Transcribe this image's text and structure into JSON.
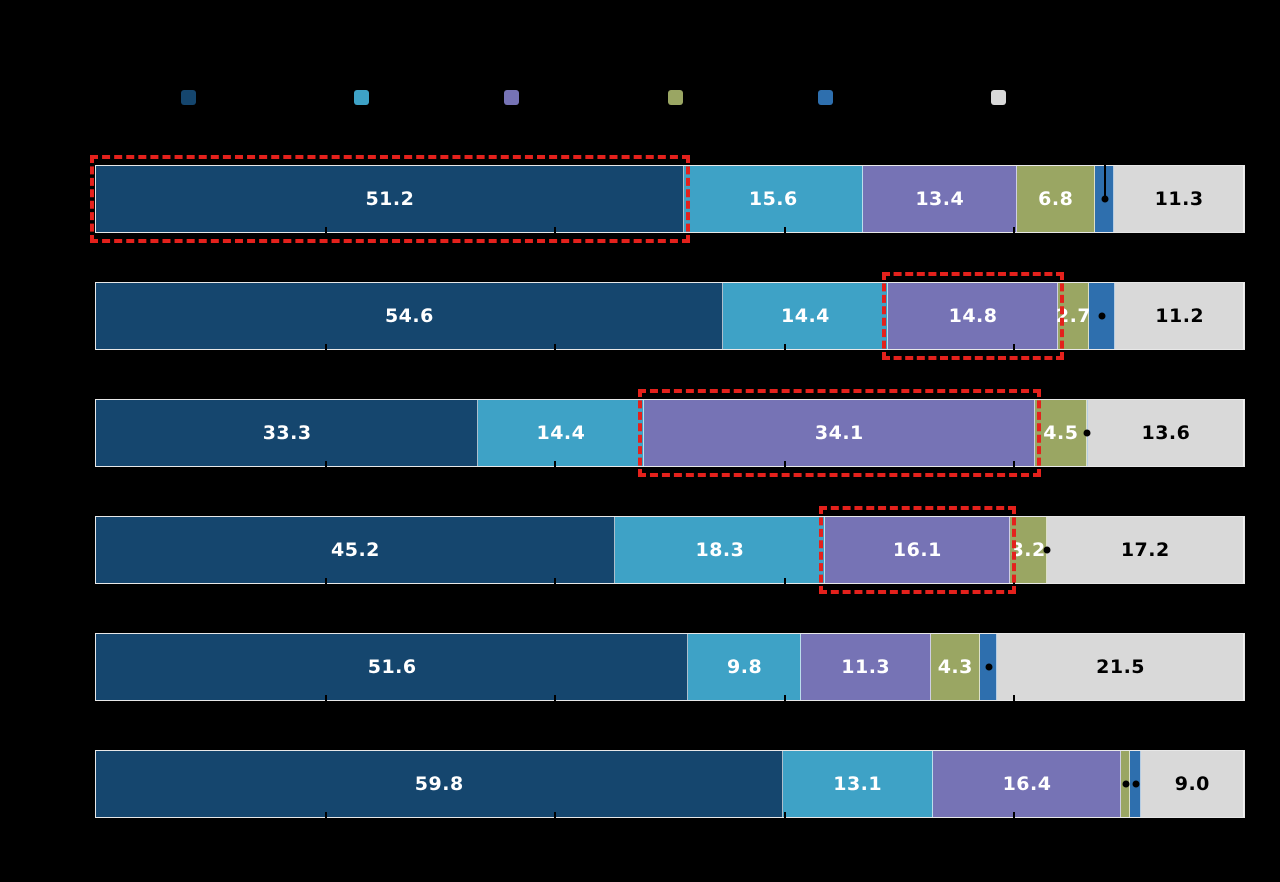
{
  "colors": {
    "background": "#000000",
    "bar_border": "#e8e8e8",
    "highlight": "#e4211c",
    "marker": "#000000",
    "label_light": "#ffffff",
    "label_dark": "#000000"
  },
  "legend": {
    "items": [
      {
        "name": "dark-blue",
        "color": "#15466e"
      },
      {
        "name": "light-blue",
        "color": "#3ea2c6"
      },
      {
        "name": "purple",
        "color": "#7673b5"
      },
      {
        "name": "olive",
        "color": "#9aa663"
      },
      {
        "name": "medium-blue",
        "color": "#2e6fae"
      },
      {
        "name": "light-gray",
        "color": "#d9d9d9"
      }
    ]
  },
  "chart_data": {
    "type": "bar",
    "orientation": "horizontal",
    "stacked": true,
    "grid": false,
    "legend_position": "top",
    "xlim": [
      0,
      100
    ],
    "axis_ticks": [
      20,
      40,
      60,
      80
    ],
    "value_label_min": 2.5,
    "value_label_decimals": 1,
    "categories": [
      "",
      "",
      "",
      "",
      "",
      ""
    ],
    "series": [
      {
        "name": "dark-blue",
        "color": "#15466e",
        "label_color": "#ffffff",
        "values": [
          51.2,
          54.6,
          33.3,
          45.2,
          51.6,
          59.8
        ]
      },
      {
        "name": "light-blue",
        "color": "#3ea2c6",
        "label_color": "#ffffff",
        "values": [
          15.6,
          14.4,
          14.4,
          18.3,
          9.8,
          13.1
        ]
      },
      {
        "name": "purple",
        "color": "#7673b5",
        "label_color": "#ffffff",
        "values": [
          13.4,
          14.8,
          34.1,
          16.1,
          11.3,
          16.4
        ]
      },
      {
        "name": "olive",
        "color": "#9aa663",
        "label_color": "#ffffff",
        "values": [
          6.8,
          2.7,
          4.5,
          3.2,
          4.3,
          0.8
        ]
      },
      {
        "name": "medium-blue",
        "color": "#2e6fae",
        "label_color": "#ffffff",
        "values": [
          1.7,
          2.3,
          0.1,
          0.0,
          1.5,
          0.9
        ]
      },
      {
        "name": "light-gray",
        "color": "#d9d9d9",
        "label_color": "#000000",
        "values": [
          11.3,
          11.2,
          13.6,
          17.2,
          21.5,
          9.0
        ]
      }
    ],
    "highlights": [
      {
        "row": 0,
        "series": 0
      },
      {
        "row": 1,
        "series": 2
      },
      {
        "row": 2,
        "series": 2
      },
      {
        "row": 3,
        "series": 2
      }
    ],
    "markers": [
      {
        "row": 0,
        "series": 4,
        "type": "line-dot"
      },
      {
        "row": 1,
        "series": 4,
        "type": "dot"
      },
      {
        "row": 2,
        "series": 4,
        "type": "dot"
      },
      {
        "row": 3,
        "series": 4,
        "type": "dot"
      },
      {
        "row": 4,
        "series": 4,
        "type": "dot"
      },
      {
        "row": 5,
        "series": 3,
        "type": "dot"
      },
      {
        "row": 5,
        "series": 4,
        "type": "dot"
      }
    ]
  }
}
